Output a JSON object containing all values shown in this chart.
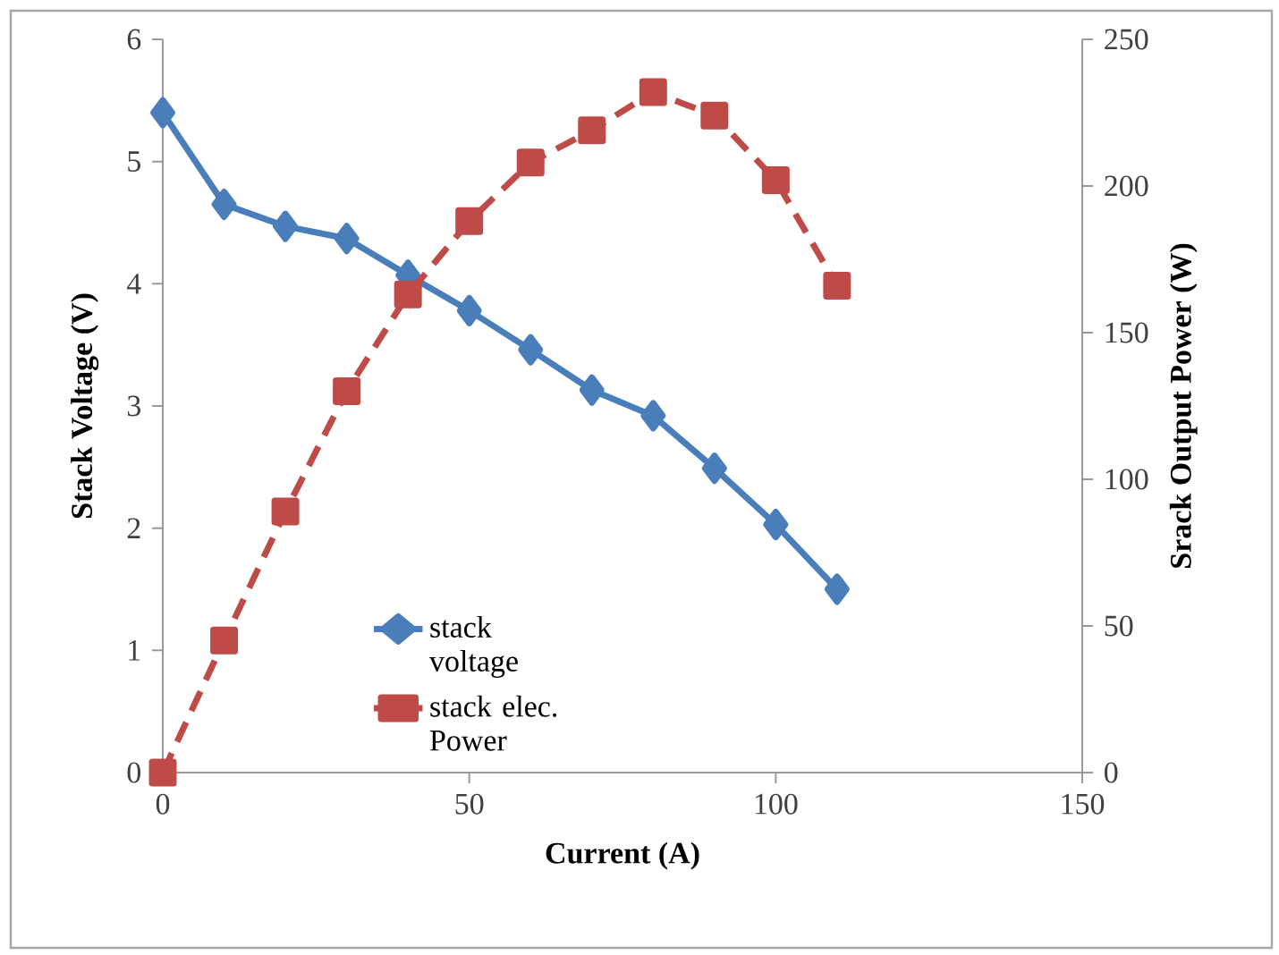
{
  "chart_data": {
    "type": "line",
    "xlabel": "Current (A)",
    "ylabel": "Stack Voltage (V)",
    "y2label": "Srack Output Power (W)",
    "x": [
      0,
      10,
      20,
      30,
      40,
      50,
      60,
      70,
      80,
      90,
      100,
      110
    ],
    "series": [
      {
        "name": "stack voltage",
        "color": "#4a7ebb",
        "marker": "diamond",
        "line_style": "solid",
        "values": [
          5.4,
          4.65,
          4.47,
          4.37,
          4.07,
          3.78,
          3.46,
          3.13,
          2.92,
          2.49,
          2.03,
          1.5
        ]
      },
      {
        "name": "stack elec. Power",
        "color": "#be4b48",
        "marker": "square",
        "line_style": "dashed",
        "axis": "y2",
        "values": [
          0,
          45,
          89,
          130,
          163,
          188,
          208,
          219,
          232,
          224,
          202,
          166
        ]
      }
    ],
    "xlim": [
      0,
      150
    ],
    "xticks": [
      0,
      50,
      100,
      150
    ],
    "ylim": [
      0,
      6
    ],
    "yticks": [
      0,
      1,
      2,
      3,
      4,
      5,
      6
    ],
    "y2lim": [
      0,
      250
    ],
    "y2ticks": [
      0,
      50,
      100,
      150,
      200,
      250
    ],
    "legend": "bottom"
  }
}
